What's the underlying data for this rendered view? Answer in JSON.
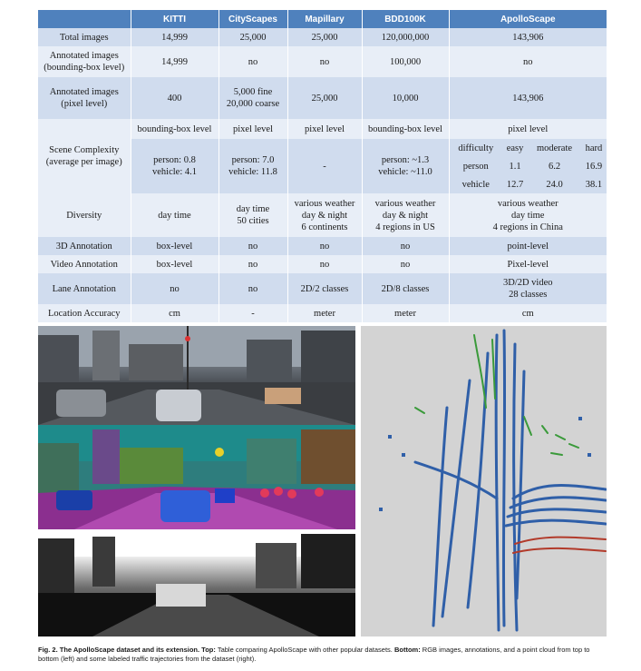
{
  "table": {
    "headers": [
      "",
      "KITTI",
      "CityScapes",
      "Mapillary",
      "BDD100K",
      "ApolloScape"
    ],
    "rows": {
      "total_images": [
        "Total images",
        "14,999",
        "25,000",
        "25,000",
        "120,000,000",
        "143,906"
      ],
      "annot_bbox": [
        "Annotated images\n(bounding-box level)",
        "14,999",
        "no",
        "no",
        "100,000",
        "no"
      ],
      "annot_pixel": [
        "Annotated images\n(pixel level)",
        "400",
        "5,000 fine\n20,000 coarse",
        "25,000",
        "10,000",
        "143,906"
      ],
      "scene_levels": [
        "bounding-box level",
        "pixel level",
        "pixel level",
        "bounding-box level",
        "pixel level"
      ],
      "scene_label": "Scene Complexity\n(average per image)",
      "scene_values": [
        "person: 0.8\nvehicle: 4.1",
        "person: 7.0\nvehicle: 11.8",
        "-",
        "person: ~1.3\nvehicle: ~11.0"
      ],
      "apollo_sub": {
        "header": [
          "difficulty",
          "easy",
          "moderate",
          "hard"
        ],
        "person": [
          "person",
          "1.1",
          "6.2",
          "16.9"
        ],
        "vehicle": [
          "vehicle",
          "12.7",
          "24.0",
          "38.1"
        ]
      },
      "diversity": [
        "Diversity",
        "day time",
        "day time\n50 cities",
        "various weather\nday & night\n6 continents",
        "various weather\nday & night\n4 regions in US",
        "various weather\nday time\n4 regions in China"
      ],
      "annot_3d": [
        "3D Annotation",
        "box-level",
        "no",
        "no",
        "no",
        "point-level"
      ],
      "annot_video": [
        "Video Annotation",
        "box-level",
        "no",
        "no",
        "no",
        "Pixel-level"
      ],
      "annot_lane": [
        "Lane Annotation",
        "no",
        "no",
        "2D/2 classes",
        "2D/8 classes",
        "3D/2D video\n28 classes"
      ],
      "location": [
        "Location Accuracy",
        "cm",
        "-",
        "meter",
        "meter",
        "cm"
      ]
    }
  },
  "colors": {
    "header_bg": "#4f81bd",
    "row_odd": "#d0dcee",
    "row_even": "#e8eef7",
    "trajectory_blue": "#2f5fa8",
    "trajectory_green": "#3a9a3a",
    "trajectory_red": "#b23a2a"
  },
  "caption": {
    "label": "Fig. 2. The ApolloScape dataset and its extension. Top:",
    "text_top": " Table comparing ApolloScape with other popular datasets. ",
    "label_bottom": "Bottom:",
    "text_bottom": " RGB images, annotations, and a point cloud from top to bottom (left) and some labeled traffic trajectories from the dataset (right)."
  }
}
